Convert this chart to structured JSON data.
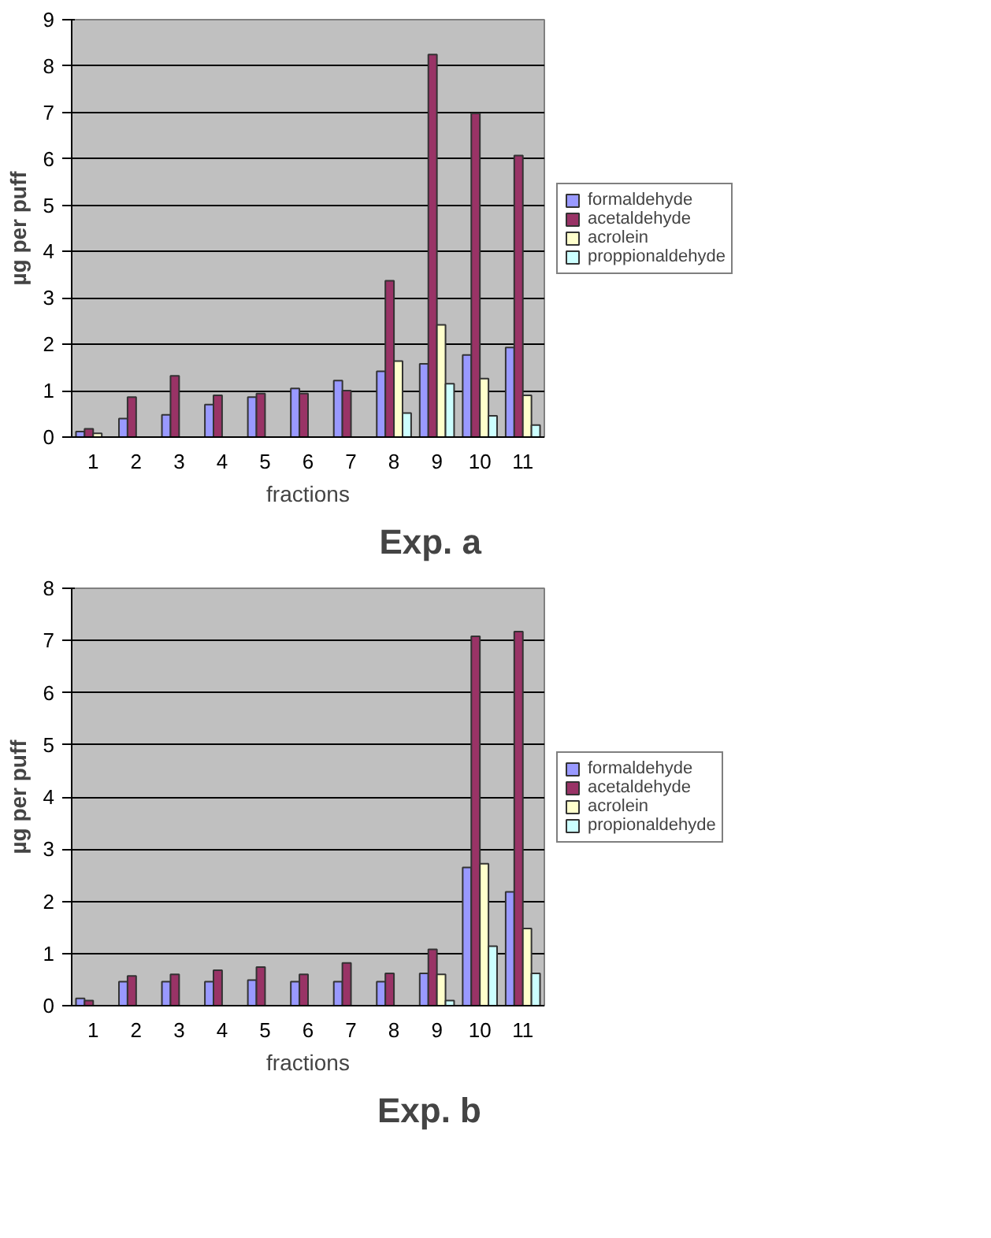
{
  "chart_data": [
    {
      "type": "bar",
      "xlabel": "fractions",
      "ylabel": "µg per puff",
      "annotations": [
        "Exp. a"
      ],
      "categories": [
        "1",
        "2",
        "3",
        "4",
        "5",
        "6",
        "7",
        "8",
        "9",
        "10",
        "11"
      ],
      "ylim": [
        0,
        9
      ],
      "yticks": [
        0,
        1,
        2,
        3,
        4,
        5,
        6,
        7,
        8,
        9
      ],
      "grid": "y",
      "legend": "right",
      "series": [
        {
          "name": "formaldehyde",
          "color": "#9999ff",
          "values": [
            0.12,
            0.4,
            0.48,
            0.7,
            0.86,
            1.05,
            1.22,
            1.42,
            1.58,
            1.77,
            1.93
          ]
        },
        {
          "name": "acetaldehyde",
          "color": "#993366",
          "values": [
            0.18,
            0.86,
            1.32,
            0.9,
            0.94,
            0.94,
            1.0,
            3.37,
            8.25,
            6.98,
            6.07
          ]
        },
        {
          "name": "acrolein",
          "color": "#ffffcc",
          "values": [
            0.08,
            null,
            null,
            null,
            null,
            null,
            null,
            1.64,
            2.42,
            1.26,
            0.9
          ]
        },
        {
          "name": "proppionaldehyde",
          "color": "#ccffff",
          "values": [
            null,
            null,
            null,
            null,
            null,
            null,
            null,
            0.52,
            1.15,
            0.46,
            0.26
          ]
        }
      ]
    },
    {
      "type": "bar",
      "xlabel": "fractions",
      "ylabel": "µg per puff",
      "annotations": [
        "Exp. b"
      ],
      "categories": [
        "1",
        "2",
        "3",
        "4",
        "5",
        "6",
        "7",
        "8",
        "9",
        "10",
        "11"
      ],
      "ylim": [
        0,
        8
      ],
      "yticks": [
        0,
        1,
        2,
        3,
        4,
        5,
        6,
        7,
        8
      ],
      "grid": "y",
      "legend": "right",
      "series": [
        {
          "name": "formaldehyde",
          "color": "#9999ff",
          "values": [
            0.14,
            0.46,
            0.46,
            0.46,
            0.49,
            0.46,
            0.46,
            0.46,
            0.62,
            2.65,
            2.18
          ]
        },
        {
          "name": "acetaldehyde",
          "color": "#993366",
          "values": [
            0.1,
            0.57,
            0.6,
            0.68,
            0.74,
            0.6,
            0.82,
            0.62,
            1.08,
            7.08,
            7.17
          ]
        },
        {
          "name": "acrolein",
          "color": "#ffffcc",
          "values": [
            null,
            null,
            null,
            null,
            null,
            null,
            null,
            null,
            0.6,
            2.72,
            1.48
          ]
        },
        {
          "name": "propionaldehyde",
          "color": "#ccffff",
          "values": [
            null,
            null,
            null,
            null,
            null,
            null,
            null,
            null,
            0.1,
            1.14,
            0.62
          ]
        }
      ]
    }
  ]
}
